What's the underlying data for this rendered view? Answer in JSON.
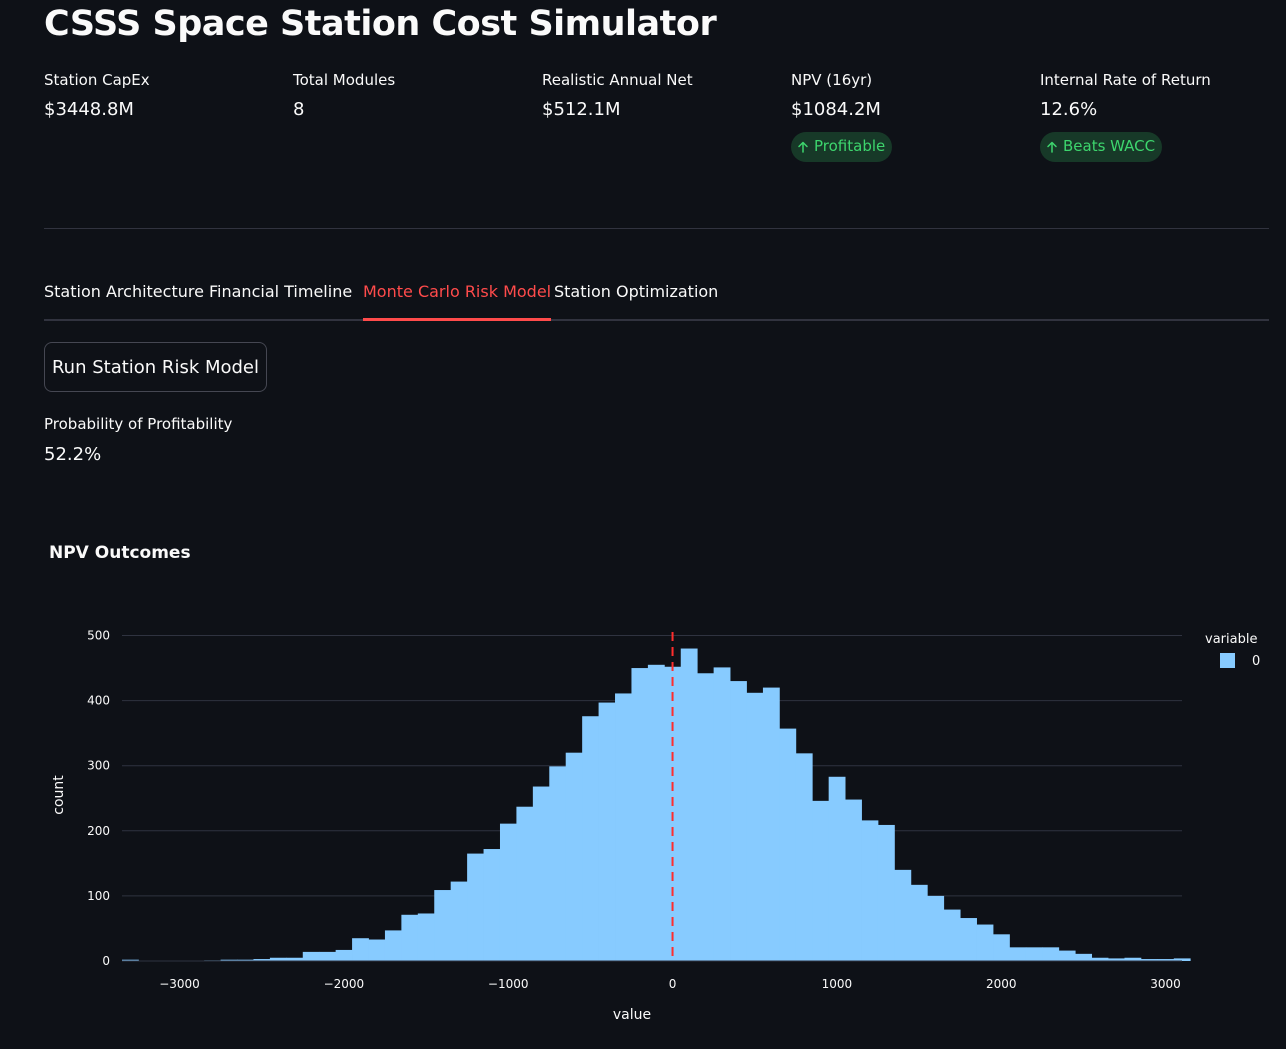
{
  "app": {
    "title": "CSSS Space Station Cost Simulator"
  },
  "metrics": [
    {
      "label": "Station CapEx",
      "value": "$3448.8M"
    },
    {
      "label": "Total Modules",
      "value": "8"
    },
    {
      "label": "Realistic Annual Net",
      "value": "$512.1M"
    },
    {
      "label": "NPV (16yr)",
      "value": "$1084.2M",
      "delta": "Profitable",
      "delta_icon": "arrow-up-icon"
    },
    {
      "label": "Internal Rate of Return",
      "value": "12.6%",
      "delta": "Beats WACC",
      "delta_icon": "arrow-up-icon"
    }
  ],
  "tabs": [
    {
      "label": "Station Architecture",
      "active": false
    },
    {
      "label": "Financial Timeline",
      "active": false
    },
    {
      "label": "Monte Carlo Risk Model",
      "active": true
    },
    {
      "label": "Station Optimization",
      "active": false
    }
  ],
  "run_button": {
    "label": "Run Station Risk Model"
  },
  "probability": {
    "label": "Probability of Profitability",
    "value": "52.2%"
  },
  "colors": {
    "background": "#0e1117",
    "accent": "#ff4b4b",
    "positive": "#3dd56d",
    "bar": "#87cbff",
    "zero_line": "#ff2d2d"
  },
  "chart_data": {
    "type": "histogram",
    "title": "NPV Outcomes",
    "xlabel": "value",
    "ylabel": "count",
    "xlim": [
      -3350,
      3100
    ],
    "ylim": [
      0,
      510
    ],
    "x_ticks": [
      -3000,
      -2000,
      -1000,
      0,
      1000,
      2000,
      3000
    ],
    "x_tick_labels": [
      "−3000",
      "−2000",
      "−1000",
      "0",
      "1000",
      "2000",
      "3000"
    ],
    "y_ticks": [
      0,
      100,
      200,
      300,
      400,
      500
    ],
    "bin_start": -3350,
    "bin_width": 100,
    "counts": [
      2,
      0,
      0,
      0,
      0,
      1,
      2,
      2,
      3,
      5,
      5,
      14,
      14,
      17,
      35,
      33,
      47,
      71,
      73,
      109,
      122,
      165,
      172,
      211,
      237,
      268,
      299,
      320,
      376,
      397,
      411,
      450,
      455,
      452,
      480,
      442,
      451,
      430,
      412,
      420,
      357,
      319,
      246,
      283,
      248,
      216,
      209,
      140,
      117,
      100,
      79,
      66,
      56,
      41,
      21,
      21,
      21,
      16,
      11,
      5,
      4,
      5,
      3,
      3,
      4
    ],
    "vline": {
      "x": 0,
      "style": "dashed"
    },
    "grid": true,
    "legend": {
      "title": "variable",
      "entries": [
        "0"
      ],
      "position": "top-right"
    }
  }
}
